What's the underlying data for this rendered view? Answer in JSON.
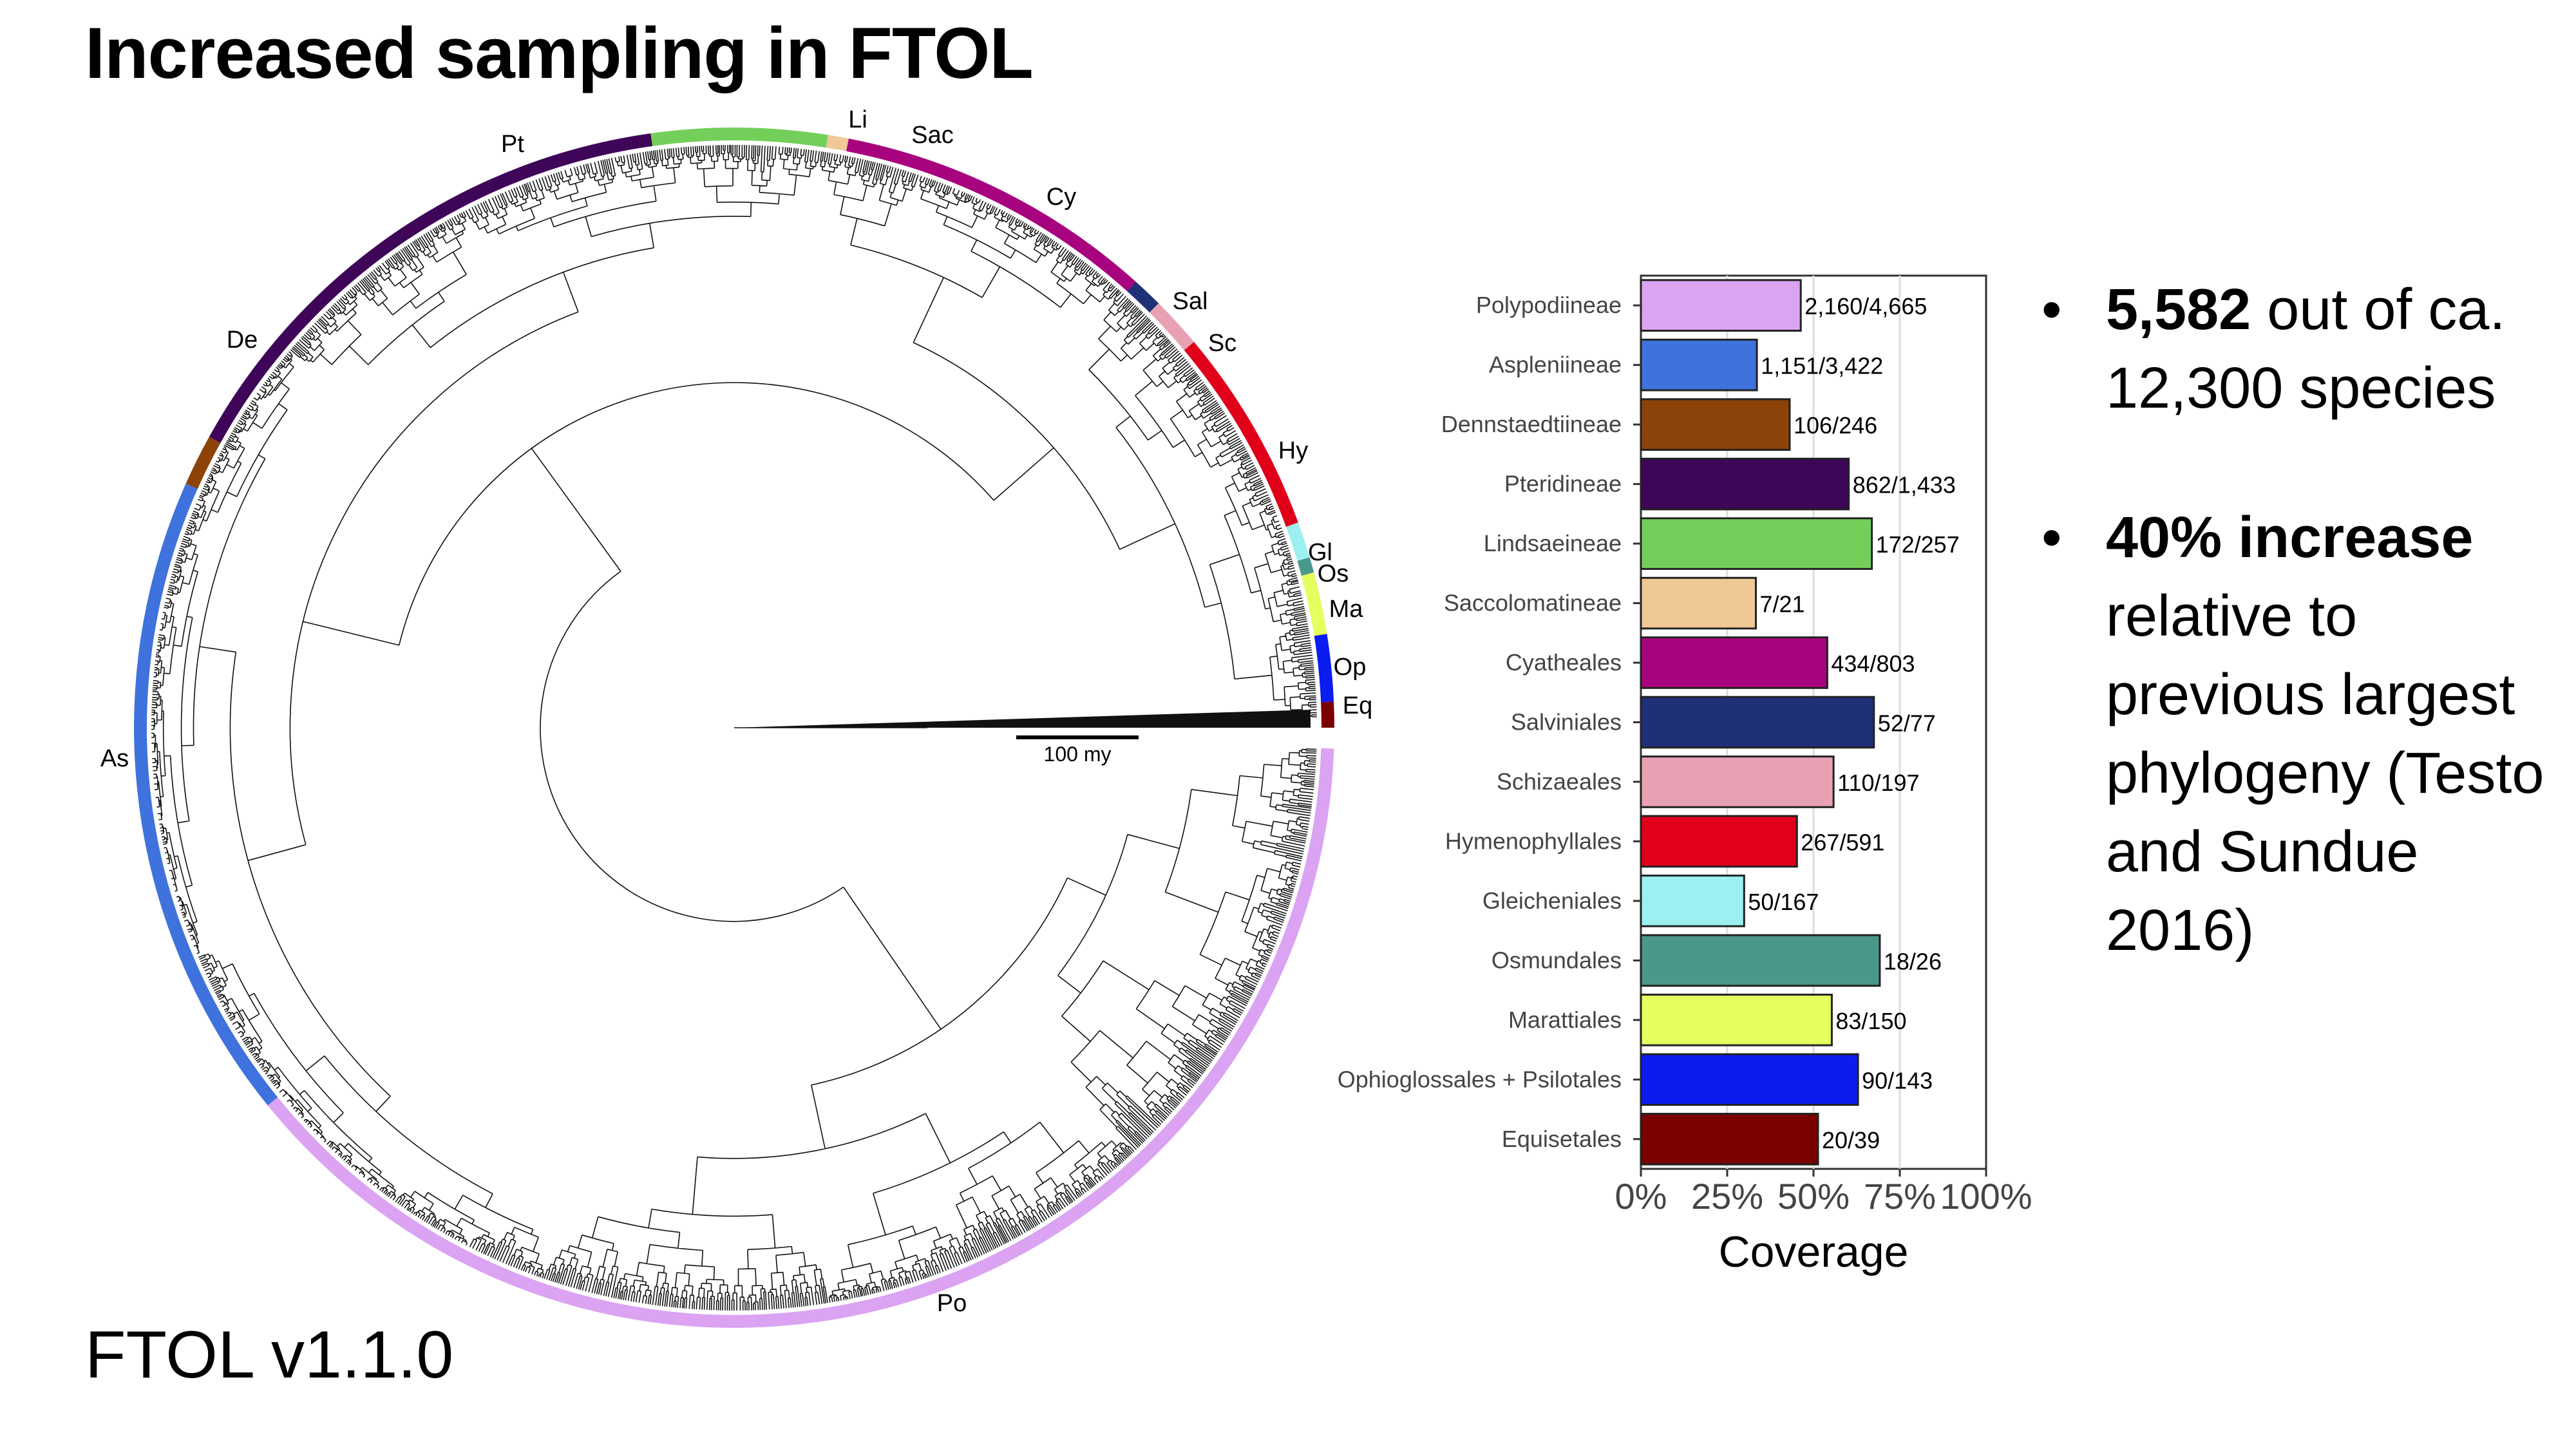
{
  "slide": {
    "title": "Increased sampling in FTOL",
    "version": "FTOL v1.1.0",
    "bullet_glyph": "•",
    "bullets": [
      {
        "bold": "5,582",
        "rest": " out of ca. 12,300 species"
      },
      {
        "bold": "40% increase",
        "rest": " relative to previous largest phylogeny (Testo and Sundue 2016)"
      }
    ]
  },
  "tree": {
    "scale_label": "100 my",
    "clades": [
      {
        "label": "Eq",
        "color": "#7a0000"
      },
      {
        "label": "Op",
        "color": "#0a1cf0"
      },
      {
        "label": "Ma",
        "color": "#e5ff5e"
      },
      {
        "label": "Os",
        "color": "#4a988b"
      },
      {
        "label": "Gl",
        "color": "#9cf0f0"
      },
      {
        "label": "Hy",
        "color": "#e0001a"
      },
      {
        "label": "Sc",
        "color": "#e8a1b3"
      },
      {
        "label": "Sal",
        "color": "#1f2f78"
      },
      {
        "label": "Cy",
        "color": "#a8037f"
      },
      {
        "label": "Sac",
        "color": "#f0c896"
      },
      {
        "label": "Li",
        "color": "#74cf5a"
      },
      {
        "label": "Pt",
        "color": "#3e0559"
      },
      {
        "label": "De",
        "color": "#8b430a"
      },
      {
        "label": "As",
        "color": "#3f72dc"
      },
      {
        "label": "Po",
        "color": "#dba3f2"
      }
    ]
  },
  "chart_data": {
    "type": "bar",
    "orientation": "horizontal",
    "xlabel": "Coverage",
    "ylabel": "",
    "xlim": [
      0,
      100
    ],
    "xticks": [
      "0%",
      "25%",
      "50%",
      "75%",
      "100%"
    ],
    "categories": [
      "Polypodiineae",
      "Aspleniineae",
      "Dennstaedtiineae",
      "Pteridineae",
      "Lindsaeineae",
      "Saccolomatineae",
      "Cyatheales",
      "Salviniales",
      "Schizaeales",
      "Hymenophyllales",
      "Gleicheniales",
      "Osmundales",
      "Marattiales",
      "Ophioglossales + Psilotales",
      "Equisetales"
    ],
    "values": [
      46.3,
      33.6,
      43.1,
      60.2,
      66.9,
      33.3,
      54.0,
      67.5,
      55.8,
      45.2,
      29.9,
      69.2,
      55.3,
      62.9,
      51.3
    ],
    "labels": [
      "2,160/4,665",
      "1,151/3,422",
      "106/246",
      "862/1,433",
      "172/257",
      "7/21",
      "434/803",
      "52/77",
      "110/197",
      "267/591",
      "50/167",
      "18/26",
      "83/150",
      "90/143",
      "20/39"
    ],
    "colors": [
      "#dba3f2",
      "#3f72dc",
      "#8b430a",
      "#3e0559",
      "#74cf5a",
      "#f0c896",
      "#a8037f",
      "#1f2f78",
      "#e8a1b3",
      "#e0001a",
      "#9cf0f0",
      "#4a988b",
      "#e5ff5e",
      "#0a1cf0",
      "#7a0000"
    ],
    "grid": true
  }
}
